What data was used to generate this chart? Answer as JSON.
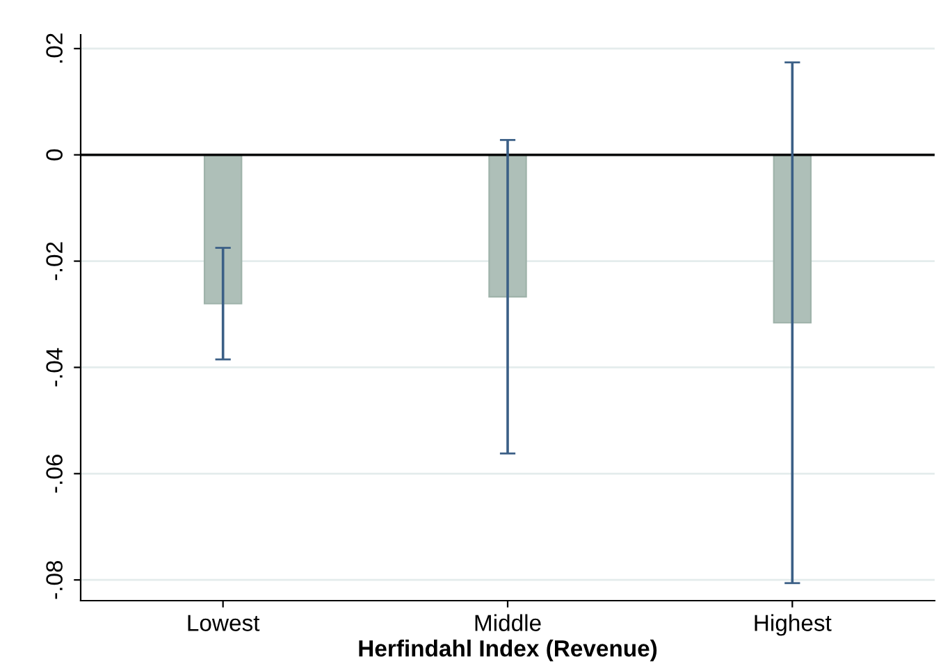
{
  "chart_data": {
    "type": "bar",
    "xlabel": "Herfindahl Index (Revenue)",
    "categories": [
      "Lowest",
      "Middle",
      "Highest"
    ],
    "values": [
      -0.028,
      -0.0267,
      -0.0316
    ],
    "errors": [
      0.0105,
      0.0295,
      0.049
    ],
    "color": "#aebfb8",
    "ylim": [
      -0.0839,
      0.0226
    ],
    "yticks": [
      {
        "value": 0.02,
        "label": ".02"
      },
      {
        "value": 0,
        "label": "0"
      },
      {
        "value": -0.02,
        "label": "-.02"
      },
      {
        "value": -0.04,
        "label": "-.04"
      },
      {
        "value": -0.06,
        "label": "-.06"
      },
      {
        "value": -0.08,
        "label": "-.08"
      }
    ],
    "ref_lines": [
      {
        "axis": "y",
        "value": 0,
        "color": "#000000"
      }
    ],
    "grid": "y"
  }
}
